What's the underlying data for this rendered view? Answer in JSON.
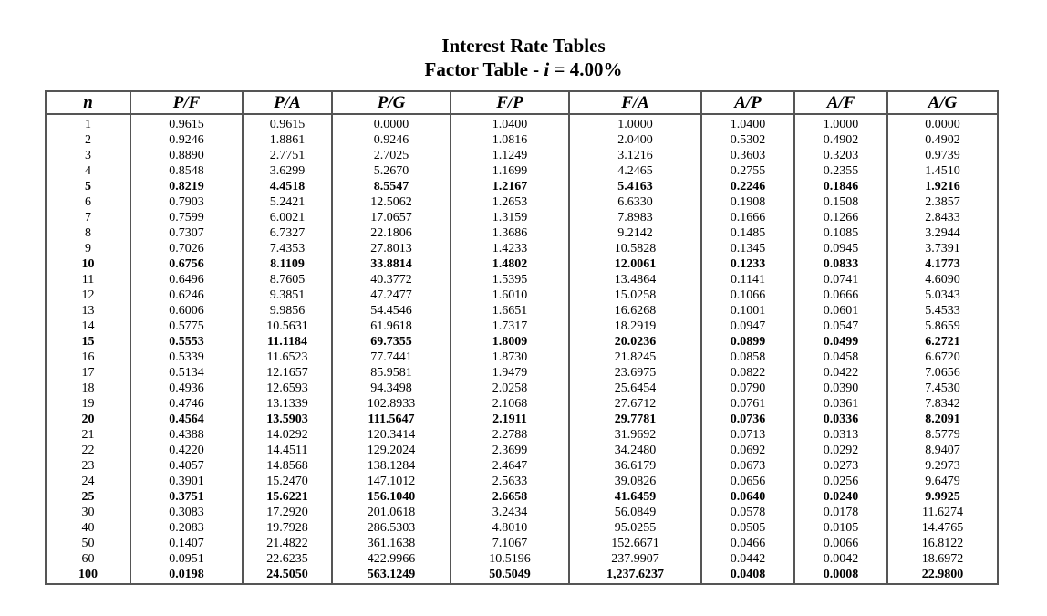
{
  "title": "Interest Rate Tables",
  "subtitle": {
    "prefix": "Factor Table - ",
    "variable": "i",
    "suffix": " = 4.00%"
  },
  "columns": [
    "n",
    "P/F",
    "P/A",
    "P/G",
    "F/P",
    "F/A",
    "A/P",
    "A/F",
    "A/G"
  ],
  "rows": [
    {
      "bold": false,
      "cells": [
        "1",
        "0.9615",
        "0.9615",
        "0.0000",
        "1.0400",
        "1.0000",
        "1.0400",
        "1.0000",
        "0.0000"
      ]
    },
    {
      "bold": false,
      "cells": [
        "2",
        "0.9246",
        "1.8861",
        "0.9246",
        "1.0816",
        "2.0400",
        "0.5302",
        "0.4902",
        "0.4902"
      ]
    },
    {
      "bold": false,
      "cells": [
        "3",
        "0.8890",
        "2.7751",
        "2.7025",
        "1.1249",
        "3.1216",
        "0.3603",
        "0.3203",
        "0.9739"
      ]
    },
    {
      "bold": false,
      "cells": [
        "4",
        "0.8548",
        "3.6299",
        "5.2670",
        "1.1699",
        "4.2465",
        "0.2755",
        "0.2355",
        "1.4510"
      ]
    },
    {
      "bold": true,
      "cells": [
        "5",
        "0.8219",
        "4.4518",
        "8.5547",
        "1.2167",
        "5.4163",
        "0.2246",
        "0.1846",
        "1.9216"
      ]
    },
    {
      "bold": false,
      "cells": [
        "6",
        "0.7903",
        "5.2421",
        "12.5062",
        "1.2653",
        "6.6330",
        "0.1908",
        "0.1508",
        "2.3857"
      ]
    },
    {
      "bold": false,
      "cells": [
        "7",
        "0.7599",
        "6.0021",
        "17.0657",
        "1.3159",
        "7.8983",
        "0.1666",
        "0.1266",
        "2.8433"
      ]
    },
    {
      "bold": false,
      "cells": [
        "8",
        "0.7307",
        "6.7327",
        "22.1806",
        "1.3686",
        "9.2142",
        "0.1485",
        "0.1085",
        "3.2944"
      ]
    },
    {
      "bold": false,
      "cells": [
        "9",
        "0.7026",
        "7.4353",
        "27.8013",
        "1.4233",
        "10.5828",
        "0.1345",
        "0.0945",
        "3.7391"
      ]
    },
    {
      "bold": true,
      "cells": [
        "10",
        "0.6756",
        "8.1109",
        "33.8814",
        "1.4802",
        "12.0061",
        "0.1233",
        "0.0833",
        "4.1773"
      ]
    },
    {
      "bold": false,
      "cells": [
        "11",
        "0.6496",
        "8.7605",
        "40.3772",
        "1.5395",
        "13.4864",
        "0.1141",
        "0.0741",
        "4.6090"
      ]
    },
    {
      "bold": false,
      "cells": [
        "12",
        "0.6246",
        "9.3851",
        "47.2477",
        "1.6010",
        "15.0258",
        "0.1066",
        "0.0666",
        "5.0343"
      ]
    },
    {
      "bold": false,
      "cells": [
        "13",
        "0.6006",
        "9.9856",
        "54.4546",
        "1.6651",
        "16.6268",
        "0.1001",
        "0.0601",
        "5.4533"
      ]
    },
    {
      "bold": false,
      "cells": [
        "14",
        "0.5775",
        "10.5631",
        "61.9618",
        "1.7317",
        "18.2919",
        "0.0947",
        "0.0547",
        "5.8659"
      ]
    },
    {
      "bold": true,
      "cells": [
        "15",
        "0.5553",
        "11.1184",
        "69.7355",
        "1.8009",
        "20.0236",
        "0.0899",
        "0.0499",
        "6.2721"
      ]
    },
    {
      "bold": false,
      "cells": [
        "16",
        "0.5339",
        "11.6523",
        "77.7441",
        "1.8730",
        "21.8245",
        "0.0858",
        "0.0458",
        "6.6720"
      ]
    },
    {
      "bold": false,
      "cells": [
        "17",
        "0.5134",
        "12.1657",
        "85.9581",
        "1.9479",
        "23.6975",
        "0.0822",
        "0.0422",
        "7.0656"
      ]
    },
    {
      "bold": false,
      "cells": [
        "18",
        "0.4936",
        "12.6593",
        "94.3498",
        "2.0258",
        "25.6454",
        "0.0790",
        "0.0390",
        "7.4530"
      ]
    },
    {
      "bold": false,
      "cells": [
        "19",
        "0.4746",
        "13.1339",
        "102.8933",
        "2.1068",
        "27.6712",
        "0.0761",
        "0.0361",
        "7.8342"
      ]
    },
    {
      "bold": true,
      "cells": [
        "20",
        "0.4564",
        "13.5903",
        "111.5647",
        "2.1911",
        "29.7781",
        "0.0736",
        "0.0336",
        "8.2091"
      ]
    },
    {
      "bold": false,
      "cells": [
        "21",
        "0.4388",
        "14.0292",
        "120.3414",
        "2.2788",
        "31.9692",
        "0.0713",
        "0.0313",
        "8.5779"
      ]
    },
    {
      "bold": false,
      "cells": [
        "22",
        "0.4220",
        "14.4511",
        "129.2024",
        "2.3699",
        "34.2480",
        "0.0692",
        "0.0292",
        "8.9407"
      ]
    },
    {
      "bold": false,
      "cells": [
        "23",
        "0.4057",
        "14.8568",
        "138.1284",
        "2.4647",
        "36.6179",
        "0.0673",
        "0.0273",
        "9.2973"
      ]
    },
    {
      "bold": false,
      "cells": [
        "24",
        "0.3901",
        "15.2470",
        "147.1012",
        "2.5633",
        "39.0826",
        "0.0656",
        "0.0256",
        "9.6479"
      ]
    },
    {
      "bold": true,
      "cells": [
        "25",
        "0.3751",
        "15.6221",
        "156.1040",
        "2.6658",
        "41.6459",
        "0.0640",
        "0.0240",
        "9.9925"
      ]
    },
    {
      "bold": false,
      "cells": [
        "30",
        "0.3083",
        "17.2920",
        "201.0618",
        "3.2434",
        "56.0849",
        "0.0578",
        "0.0178",
        "11.6274"
      ]
    },
    {
      "bold": false,
      "cells": [
        "40",
        "0.2083",
        "19.7928",
        "286.5303",
        "4.8010",
        "95.0255",
        "0.0505",
        "0.0105",
        "14.4765"
      ]
    },
    {
      "bold": false,
      "cells": [
        "50",
        "0.1407",
        "21.4822",
        "361.1638",
        "7.1067",
        "152.6671",
        "0.0466",
        "0.0066",
        "16.8122"
      ]
    },
    {
      "bold": false,
      "cells": [
        "60",
        "0.0951",
        "22.6235",
        "422.9966",
        "10.5196",
        "237.9907",
        "0.0442",
        "0.0042",
        "18.6972"
      ]
    },
    {
      "bold": true,
      "cells": [
        "100",
        "0.0198",
        "24.5050",
        "563.1249",
        "50.5049",
        "1,237.6237",
        "0.0408",
        "0.0008",
        "22.9800"
      ]
    }
  ]
}
